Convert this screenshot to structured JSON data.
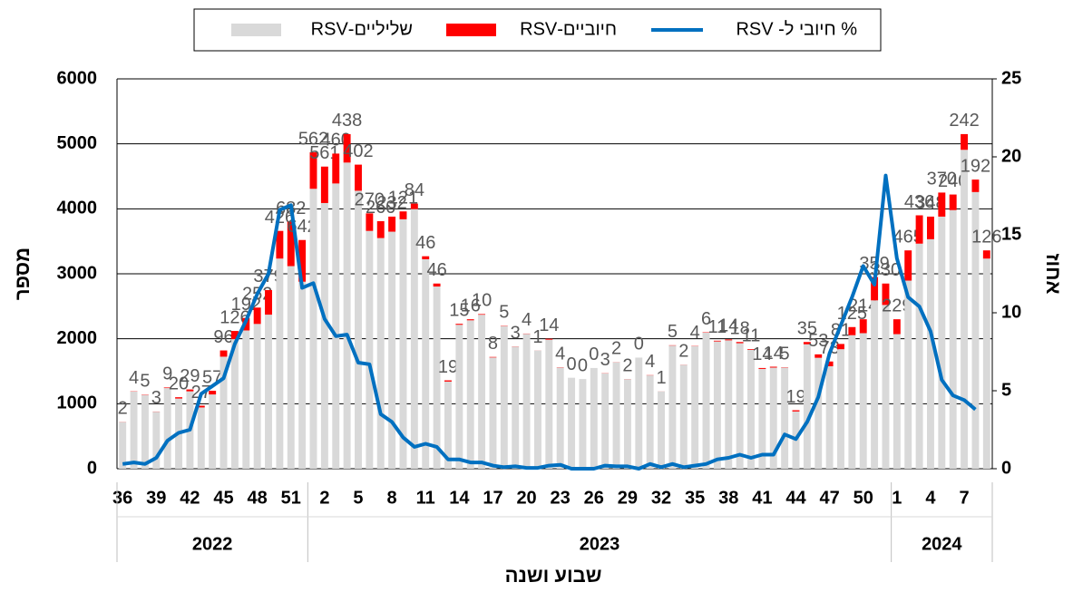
{
  "chart_data": {
    "type": "bar",
    "stacked": true,
    "x_label": "שבוע ושנה",
    "y_label": "מספר",
    "y2_label": "אחוז",
    "categories": [
      "36",
      null,
      null,
      "39",
      null,
      null,
      "42",
      null,
      null,
      "45",
      null,
      null,
      "48",
      null,
      null,
      "51",
      null,
      null,
      "2",
      null,
      null,
      "5",
      null,
      null,
      "8",
      null,
      null,
      "11",
      null,
      null,
      "14",
      null,
      null,
      "17",
      null,
      null,
      "20",
      null,
      null,
      "23",
      null,
      null,
      "26",
      null,
      null,
      "29",
      null,
      null,
      "32",
      null,
      null,
      "35",
      null,
      null,
      "38",
      null,
      null,
      "41",
      null,
      null,
      "44",
      null,
      null,
      "47",
      null,
      null,
      "50",
      null,
      null,
      "1",
      null,
      null,
      "4",
      null,
      null,
      "7",
      null,
      null
    ],
    "year_groups": [
      "2022",
      "2023",
      "2024"
    ],
    "series": [
      {
        "name": "שליליים-RSV",
        "color": "#d9d9d9",
        "values": [
          718,
          1186,
          1135,
          877,
          1241,
          1080,
          1191,
          943,
          1143,
          1724,
          1994,
          2128,
          2228,
          2371,
          3234,
          3118,
          2878,
          4308,
          4089,
          4390,
          4712,
          4278,
          3660,
          3550,
          3648,
          3839,
          3996,
          3224,
          2804,
          1341,
          2215,
          2284,
          2370,
          1712,
          2195,
          1877,
          2076,
          1819,
          1986,
          1556,
          1400,
          1380,
          1550,
          1467,
          1638,
          1378,
          1710,
          1436,
          1189,
          1895,
          1598,
          1886,
          2094,
          1959,
          1976,
          1932,
          1829,
          1536,
          1556,
          1555,
          881,
          1915,
          1707,
          1577,
          1839,
          2055,
          2086,
          2591,
          2520,
          2071,
          2895,
          3464,
          3532,
          3880,
          3980,
          4908,
          4258,
          3234
        ]
      },
      {
        "name": "חיוביים-RSV",
        "color": "#ff0000",
        "data_labels": true,
        "values": [
          2,
          4,
          5,
          3,
          9,
          20,
          29,
          27,
          57,
          96,
          126,
          192,
          252,
          379,
          426,
          682,
          642,
          562,
          561,
          460,
          438,
          402,
          270,
          260,
          232,
          121,
          84,
          46,
          46,
          19,
          15,
          16,
          10,
          8,
          5,
          3,
          4,
          1,
          14,
          4,
          0,
          0,
          0,
          3,
          2,
          2,
          0,
          4,
          1,
          5,
          2,
          4,
          6,
          11,
          14,
          18,
          11,
          14,
          14,
          5,
          19,
          35,
          53,
          73,
          81,
          125,
          214,
          359,
          330,
          229,
          465,
          436,
          348,
          370,
          240,
          242,
          192,
          126
        ]
      },
      {
        "name": "% חיובי ל- RSV",
        "color": "#0070c0",
        "type": "line",
        "axis": "y2",
        "values": [
          0.3,
          0.4,
          0.3,
          0.7,
          1.8,
          2.3,
          2.5,
          4.8,
          5.3,
          5.8,
          8.0,
          9.5,
          11.2,
          12.5,
          16.6,
          16.9,
          11.6,
          11.9,
          9.6,
          8.5,
          8.6,
          6.8,
          6.7,
          3.5,
          3.0,
          2.0,
          1.4,
          1.6,
          1.4,
          0.6,
          0.6,
          0.4,
          0.4,
          0.2,
          0.1,
          0.15,
          0.05,
          0.05,
          0.2,
          0.25,
          0,
          0,
          0,
          0.2,
          0.15,
          0.15,
          0,
          0.3,
          0.1,
          0.3,
          0.1,
          0.2,
          0.3,
          0.6,
          0.7,
          0.9,
          0.7,
          0.9,
          0.9,
          2.2,
          1.9,
          3.0,
          4.6,
          7.4,
          9.2,
          11.0,
          13.0,
          11.8,
          18.8,
          13.5,
          11.0,
          10.4,
          8.8,
          5.7,
          4.7,
          4.4,
          3.8,
          null
        ]
      }
    ],
    "ylim": [
      0,
      6000
    ],
    "yticks": [
      0,
      1000,
      2000,
      3000,
      4000,
      5000,
      6000
    ],
    "y2lim": [
      0,
      25
    ],
    "y2ticks": [
      0,
      5,
      10,
      15,
      20,
      25
    ],
    "grid": true,
    "legend": "top"
  }
}
